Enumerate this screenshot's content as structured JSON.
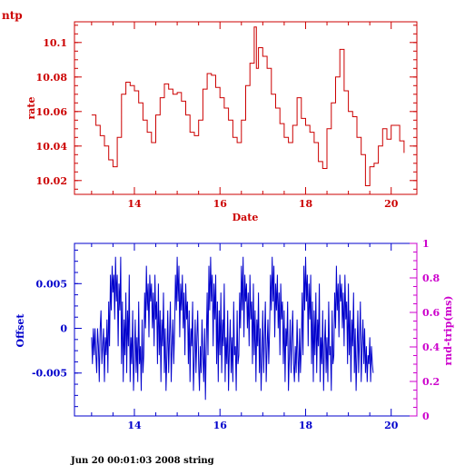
{
  "page_label": "ntp",
  "footer": "Jun 20 00:01:03 2008 string",
  "colors": {
    "top": "#cc0000",
    "bottom": "#0000cc",
    "right_axis": "#cc00cc",
    "bg": "#ffffff"
  },
  "chart_data": [
    {
      "type": "line",
      "title": "",
      "xlabel": "Date",
      "ylabel": "rate",
      "xlim": [
        12.6,
        20.6
      ],
      "ylim": [
        10.012,
        10.112
      ],
      "xticks": [
        14,
        16,
        18,
        20
      ],
      "yticks": [
        10.02,
        10.04,
        10.06,
        10.08,
        10.1
      ],
      "ytick_labels": [
        "10.02",
        "10.04",
        "10.06",
        "10.08",
        "10.1"
      ],
      "x": [
        13.0,
        13.1,
        13.2,
        13.3,
        13.4,
        13.5,
        13.6,
        13.7,
        13.8,
        13.9,
        14.0,
        14.1,
        14.2,
        14.3,
        14.4,
        14.5,
        14.6,
        14.7,
        14.8,
        14.9,
        15.0,
        15.1,
        15.2,
        15.3,
        15.4,
        15.5,
        15.6,
        15.7,
        15.8,
        15.9,
        16.0,
        16.1,
        16.2,
        16.3,
        16.4,
        16.5,
        16.6,
        16.7,
        16.8,
        16.85,
        16.9,
        17.0,
        17.1,
        17.2,
        17.3,
        17.4,
        17.5,
        17.6,
        17.7,
        17.8,
        17.9,
        18.0,
        18.1,
        18.2,
        18.3,
        18.4,
        18.5,
        18.6,
        18.7,
        18.8,
        18.9,
        19.0,
        19.1,
        19.2,
        19.3,
        19.4,
        19.5,
        19.6,
        19.7,
        19.8,
        19.9,
        20.0,
        20.1,
        20.2,
        20.3
      ],
      "values": [
        10.058,
        10.052,
        10.046,
        10.04,
        10.032,
        10.028,
        10.045,
        10.07,
        10.077,
        10.075,
        10.072,
        10.065,
        10.055,
        10.048,
        10.042,
        10.058,
        10.068,
        10.076,
        10.073,
        10.07,
        10.071,
        10.066,
        10.058,
        10.048,
        10.046,
        10.055,
        10.073,
        10.082,
        10.081,
        10.074,
        10.068,
        10.062,
        10.055,
        10.045,
        10.042,
        10.055,
        10.075,
        10.088,
        10.109,
        10.085,
        10.097,
        10.092,
        10.085,
        10.07,
        10.062,
        10.053,
        10.045,
        10.042,
        10.052,
        10.068,
        10.056,
        10.052,
        10.048,
        10.042,
        10.031,
        10.027,
        10.05,
        10.065,
        10.08,
        10.096,
        10.072,
        10.06,
        10.057,
        10.045,
        10.035,
        10.017,
        10.028,
        10.03,
        10.04,
        10.05,
        10.044,
        10.052,
        10.052,
        10.043,
        10.036
      ]
    },
    {
      "type": "line",
      "title": "",
      "xlabel": "",
      "ylabel": "Offset",
      "ylabel_right": "rnd-trip(ms)",
      "xlim": [
        12.6,
        20.6
      ],
      "ylim": [
        -0.0098,
        0.0095
      ],
      "y2lim": [
        0,
        1
      ],
      "xticks": [
        14,
        16,
        18,
        20
      ],
      "yticks": [
        -0.005,
        0,
        0.005
      ],
      "ytick_labels": [
        "-0.005",
        "0",
        "0.005"
      ],
      "y2ticks": [
        0,
        0.2,
        0.4,
        0.6,
        0.8,
        1
      ],
      "y2tick_labels": [
        "0",
        "0.2",
        "0.4",
        "0.6",
        "0.8",
        "1"
      ],
      "series": [
        {
          "x_start": 13.0,
          "x_step": 0.02,
          "values": [
            -0.001,
            -0.004,
            0.0,
            -0.003,
            0.0,
            -0.003,
            -0.005,
            0.0,
            -0.002,
            -0.006,
            0.0,
            0.002,
            -0.004,
            -0.002,
            0.0,
            -0.006,
            -0.001,
            -0.003,
            0.001,
            -0.005,
            0.003,
            -0.002,
            0.006,
            0.002,
            0.007,
            0.004,
            0.006,
            0.001,
            0.008,
            0.003,
            0.006,
            -0.002,
            0.005,
            0.002,
            0.008,
            -0.004,
            0.003,
            -0.006,
            0.001,
            -0.003,
            0.004,
            -0.005,
            0.002,
            -0.002,
            0.006,
            -0.006,
            -0.001,
            -0.004,
            0.002,
            -0.007,
            -0.003,
            0.001,
            -0.005,
            -0.001,
            -0.006,
            0.003,
            -0.004,
            -0.002,
            -0.007,
            0.001,
            -0.005,
            -0.003,
            0.004,
            0.0,
            0.007,
            0.002,
            0.005,
            -0.001,
            0.006,
            0.003,
            0.005,
            0.0,
            0.004,
            -0.002,
            0.006,
            0.001,
            0.003,
            -0.004,
            0.005,
            -0.003,
            0.002,
            -0.006,
            0.001,
            -0.002,
            0.004,
            -0.005,
            0.0,
            -0.007,
            -0.003,
            0.002,
            -0.005,
            -0.001,
            0.003,
            -0.006,
            -0.002,
            0.001,
            -0.004,
            0.0,
            0.006,
            0.002,
            0.008,
            0.003,
            0.007,
            -0.001,
            0.005,
            0.002,
            0.006,
            0.0,
            0.004,
            -0.003,
            0.005,
            0.001,
            0.003,
            -0.004,
            0.002,
            -0.006,
            0.0,
            -0.002,
            0.003,
            -0.007,
            -0.003,
            0.001,
            -0.005,
            -0.001,
            0.002,
            -0.004,
            -0.007,
            -0.002,
            -0.005,
            0.001,
            -0.003,
            -0.006,
            0.0,
            -0.008,
            -0.002,
            0.004,
            -0.003,
            0.007,
            0.002,
            0.008,
            0.003,
            0.006,
            -0.002,
            0.005,
            0.001,
            0.006,
            -0.004,
            0.003,
            -0.006,
            0.002,
            -0.003,
            0.004,
            -0.005,
            0.001,
            -0.002,
            0.005,
            -0.006,
            -0.001,
            -0.004,
            0.002,
            -0.007,
            -0.002,
            0.001,
            -0.005,
            -0.001,
            -0.006,
            0.003,
            -0.003,
            -0.002,
            -0.007,
            0.002,
            -0.004,
            -0.003,
            0.004,
            0.0,
            0.007,
            0.002,
            0.008,
            -0.001,
            0.006,
            0.003,
            0.005,
            0.0,
            0.004,
            -0.002,
            0.006,
            0.001,
            0.003,
            -0.004,
            0.005,
            -0.003,
            0.002,
            -0.006,
            0.001,
            -0.002,
            0.004,
            -0.005,
            0.0,
            -0.007,
            -0.003,
            0.002,
            -0.005,
            -0.001,
            0.003,
            -0.006,
            -0.002,
            0.001,
            -0.004,
            0.0,
            0.006,
            0.002,
            0.008,
            0.003,
            0.007,
            -0.001,
            0.005,
            0.002,
            0.006,
            0.0,
            0.004,
            -0.003,
            0.005,
            0.001,
            0.003,
            -0.004,
            0.002,
            -0.006,
            0.0,
            -0.002,
            0.003,
            -0.007,
            -0.003,
            0.001,
            -0.005,
            -0.001,
            0.002,
            -0.004,
            -0.006,
            -0.002,
            -0.005,
            0.001,
            -0.003,
            -0.006,
            0.0,
            -0.005,
            -0.002,
            0.004,
            -0.003,
            0.007,
            0.002,
            0.008,
            0.003,
            0.006,
            -0.002,
            0.005,
            0.001,
            0.006,
            -0.004,
            0.003,
            -0.006,
            0.002,
            -0.003,
            0.004,
            -0.005,
            0.001,
            -0.002,
            0.005,
            -0.006,
            -0.001,
            -0.004,
            0.002,
            -0.007,
            -0.002,
            0.001,
            -0.005,
            -0.001,
            -0.006,
            0.003,
            -0.003,
            -0.002,
            -0.007,
            0.002,
            -0.004,
            -0.003,
            0.004,
            0.0,
            0.007,
            0.002,
            0.005,
            -0.001,
            0.006,
            0.003,
            0.005,
            0.0,
            0.004,
            -0.002,
            0.006,
            0.001,
            0.003,
            -0.004,
            0.005,
            -0.003,
            0.002,
            -0.006,
            0.001,
            -0.002,
            0.004,
            -0.005,
            0.0,
            -0.007,
            -0.003,
            0.002,
            -0.005,
            -0.001,
            0.003,
            -0.006,
            -0.002,
            0.001,
            -0.004,
            0.0,
            -0.005,
            -0.002,
            -0.006,
            -0.003,
            -0.004,
            -0.001,
            -0.006,
            -0.002,
            -0.004,
            -0.005
          ]
        }
      ]
    }
  ]
}
